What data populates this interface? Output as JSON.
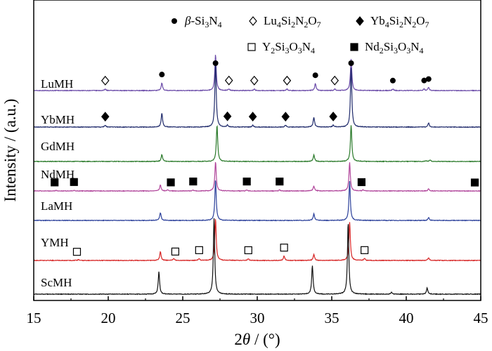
{
  "chart_data": {
    "type": "line",
    "xlabel_parts": [
      "2",
      "θ",
      " / (°)"
    ],
    "ylabel": "Intensity / (a.u.)",
    "xlim": [
      15,
      45
    ],
    "x_ticks": [
      15,
      20,
      25,
      30,
      35,
      40,
      45
    ],
    "y_ticks_shown": false,
    "grid": false,
    "legend": [
      {
        "marker": "circle-filled",
        "label_parts": [
          [
            "β",
            "i"
          ],
          [
            "-Si",
            ""
          ],
          [
            "3",
            "sub"
          ],
          [
            "N",
            ""
          ],
          [
            "4",
            "sub"
          ]
        ]
      },
      {
        "marker": "diamond-open",
        "label_parts": [
          [
            "Lu",
            ""
          ],
          [
            "4",
            "sub"
          ],
          [
            "Si",
            ""
          ],
          [
            "2",
            "sub"
          ],
          [
            "N",
            ""
          ],
          [
            "2",
            "sub"
          ],
          [
            "O",
            ""
          ],
          [
            "7",
            "sub"
          ]
        ]
      },
      {
        "marker": "diamond-filled",
        "label_parts": [
          [
            "Yb",
            ""
          ],
          [
            "4",
            "sub"
          ],
          [
            "Si",
            ""
          ],
          [
            "2",
            "sub"
          ],
          [
            "N",
            ""
          ],
          [
            "2",
            "sub"
          ],
          [
            "O",
            ""
          ],
          [
            "7",
            "sub"
          ]
        ]
      },
      {
        "marker": "square-open",
        "label_parts": [
          [
            "Y",
            ""
          ],
          [
            "2",
            "sub"
          ],
          [
            "Si",
            ""
          ],
          [
            "3",
            "sub"
          ],
          [
            "O",
            ""
          ],
          [
            "3",
            "sub"
          ],
          [
            "N",
            ""
          ],
          [
            "4",
            "sub"
          ]
        ]
      },
      {
        "marker": "square-filled",
        "label_parts": [
          [
            "Nd",
            ""
          ],
          [
            "2",
            "sub"
          ],
          [
            "Si",
            ""
          ],
          [
            "3",
            "sub"
          ],
          [
            "O",
            ""
          ],
          [
            "3",
            "sub"
          ],
          [
            "N",
            ""
          ],
          [
            "4",
            "sub"
          ]
        ]
      }
    ],
    "series": [
      {
        "name": "LuMH",
        "color": "#6a4aa8",
        "peaks": [
          [
            19.8,
            0.02
          ],
          [
            23.6,
            0.1
          ],
          [
            27.2,
            0.48
          ],
          [
            28.1,
            0.02
          ],
          [
            29.8,
            0.02
          ],
          [
            32.0,
            0.02
          ],
          [
            33.9,
            0.09
          ],
          [
            35.2,
            0.02
          ],
          [
            36.3,
            0.42
          ],
          [
            39.1,
            0.02
          ],
          [
            41.2,
            0.02
          ],
          [
            41.5,
            0.04
          ]
        ],
        "markers": [
          {
            "type": "diamond-open",
            "x": 19.8
          },
          {
            "type": "circle-filled",
            "x": 23.6
          },
          {
            "type": "circle-filled",
            "x": 27.2
          },
          {
            "type": "diamond-open",
            "x": 28.1
          },
          {
            "type": "diamond-open",
            "x": 29.8
          },
          {
            "type": "diamond-open",
            "x": 32.0
          },
          {
            "type": "circle-filled",
            "x": 33.9
          },
          {
            "type": "diamond-open",
            "x": 35.2
          },
          {
            "type": "circle-filled",
            "x": 36.3
          },
          {
            "type": "circle-filled",
            "x": 39.1
          },
          {
            "type": "circle-filled",
            "x": 41.2
          },
          {
            "type": "circle-filled",
            "x": 41.5
          }
        ]
      },
      {
        "name": "YbMH",
        "color": "#1f2a6b",
        "peaks": [
          [
            19.8,
            0.02
          ],
          [
            23.6,
            0.14
          ],
          [
            27.2,
            0.65
          ],
          [
            28.0,
            0.02
          ],
          [
            29.7,
            0.02
          ],
          [
            31.9,
            0.02
          ],
          [
            33.8,
            0.1
          ],
          [
            35.1,
            0.02
          ],
          [
            36.3,
            0.6
          ],
          [
            41.5,
            0.04
          ]
        ],
        "markers": [
          {
            "type": "diamond-filled",
            "x": 19.8
          },
          {
            "type": "diamond-filled",
            "x": 28.0
          },
          {
            "type": "diamond-filled",
            "x": 29.7
          },
          {
            "type": "diamond-filled",
            "x": 31.9
          },
          {
            "type": "diamond-filled",
            "x": 35.1
          }
        ]
      },
      {
        "name": "GdMH",
        "color": "#2a7a2a",
        "peaks": [
          [
            23.6,
            0.18
          ],
          [
            27.3,
            0.95
          ],
          [
            33.8,
            0.17
          ],
          [
            36.3,
            0.95
          ],
          [
            41.3,
            0.02
          ],
          [
            41.6,
            0.04
          ]
        ],
        "markers": []
      },
      {
        "name": "NdMH",
        "color": "#b0449a",
        "peaks": [
          [
            16.5,
            0.01
          ],
          [
            17.7,
            0.01
          ],
          [
            23.5,
            0.12
          ],
          [
            24.0,
            0.02
          ],
          [
            25.7,
            0.02
          ],
          [
            27.2,
            0.6
          ],
          [
            29.3,
            0.02
          ],
          [
            31.5,
            0.02
          ],
          [
            33.8,
            0.1
          ],
          [
            36.2,
            0.58
          ],
          [
            37.1,
            0.02
          ],
          [
            41.5,
            0.04
          ]
        ],
        "markers": [
          {
            "type": "square-filled",
            "x": 16.4
          },
          {
            "type": "square-filled",
            "x": 17.7
          },
          {
            "type": "square-filled",
            "x": 24.2
          },
          {
            "type": "square-filled",
            "x": 25.7
          },
          {
            "type": "square-filled",
            "x": 29.3
          },
          {
            "type": "square-filled",
            "x": 31.5
          },
          {
            "type": "square-filled",
            "x": 37.0
          },
          {
            "type": "square-filled",
            "x": 44.6
          }
        ]
      },
      {
        "name": "LaMH",
        "color": "#2a3f9a",
        "peaks": [
          [
            23.5,
            0.12
          ],
          [
            27.2,
            0.62
          ],
          [
            33.8,
            0.1
          ],
          [
            36.2,
            0.6
          ],
          [
            41.5,
            0.04
          ]
        ],
        "markers": []
      },
      {
        "name": "YMH",
        "color": "#d62424",
        "peaks": [
          [
            18.0,
            0.01
          ],
          [
            23.5,
            0.1
          ],
          [
            24.4,
            0.02
          ],
          [
            26.1,
            0.02
          ],
          [
            27.2,
            0.48
          ],
          [
            29.4,
            0.02
          ],
          [
            31.8,
            0.05
          ],
          [
            33.8,
            0.07
          ],
          [
            36.2,
            0.44
          ],
          [
            37.2,
            0.02
          ],
          [
            41.5,
            0.03
          ]
        ],
        "markers": [
          {
            "type": "square-open",
            "x": 17.9
          },
          {
            "type": "square-open",
            "x": 24.5
          },
          {
            "type": "square-open",
            "x": 26.1
          },
          {
            "type": "square-open",
            "x": 29.4
          },
          {
            "type": "square-open",
            "x": 31.8
          },
          {
            "type": "square-open",
            "x": 37.2
          }
        ]
      },
      {
        "name": "ScMH",
        "color": "#111111",
        "peaks": [
          [
            23.4,
            0.25
          ],
          [
            27.1,
            0.85
          ],
          [
            33.7,
            0.32
          ],
          [
            36.1,
            0.8
          ],
          [
            39.0,
            0.02
          ],
          [
            41.4,
            0.07
          ]
        ],
        "markers": []
      }
    ]
  }
}
